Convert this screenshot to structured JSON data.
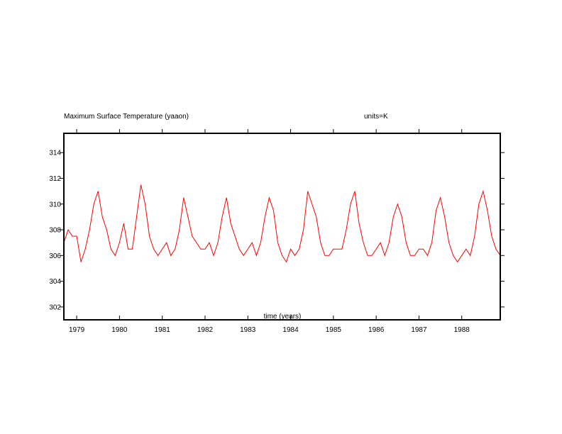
{
  "chart_data": {
    "type": "line",
    "title": "Maximum Surface Temperature (yaaon)",
    "units_label": "units=K",
    "xlabel": "time (years)",
    "ylabel": "",
    "xlim": [
      1978.7,
      1988.9
    ],
    "ylim": [
      301,
      315.5
    ],
    "x_ticks": [
      1979,
      1980,
      1981,
      1982,
      1983,
      1984,
      1985,
      1986,
      1987,
      1988
    ],
    "x_tick_labels": [
      "1979",
      "1980",
      "1981",
      "1982",
      "1983",
      "1984",
      "1985",
      "1986",
      "1987",
      "1988"
    ],
    "y_ticks": [
      302,
      304,
      306,
      308,
      310,
      312,
      314
    ],
    "y_tick_labels": [
      "302",
      "304",
      "306",
      "308",
      "310",
      "312",
      "314"
    ],
    "line_color": "#ff0000",
    "grid": false,
    "series": [
      {
        "x": [
          1978.7,
          1978.8,
          1978.9,
          1979.0,
          1979.1,
          1979.2,
          1979.3,
          1979.4,
          1979.5,
          1979.6,
          1979.7,
          1979.8,
          1979.9,
          1980.0,
          1980.1,
          1980.2,
          1980.3,
          1980.4,
          1980.5,
          1980.6,
          1980.7,
          1980.8,
          1980.9,
          1981.0,
          1981.1,
          1981.2,
          1981.3,
          1981.4,
          1981.5,
          1981.6,
          1981.7,
          1981.8,
          1981.9,
          1982.0,
          1982.1,
          1982.2,
          1982.3,
          1982.4,
          1982.5,
          1982.6,
          1982.7,
          1982.8,
          1982.9,
          1983.0,
          1983.1,
          1983.2,
          1983.3,
          1983.4,
          1983.5,
          1983.6,
          1983.7,
          1983.8,
          1983.9,
          1984.0,
          1984.1,
          1984.2,
          1984.3,
          1984.4,
          1984.5,
          1984.6,
          1984.7,
          1984.8,
          1984.9,
          1985.0,
          1985.1,
          1985.2,
          1985.3,
          1985.4,
          1985.5,
          1985.6,
          1985.7,
          1985.8,
          1985.9,
          1986.0,
          1986.1,
          1986.2,
          1986.3,
          1986.4,
          1986.5,
          1986.6,
          1986.7,
          1986.8,
          1986.9,
          1987.0,
          1987.1,
          1987.2,
          1987.3,
          1987.4,
          1987.5,
          1987.6,
          1987.7,
          1987.8,
          1987.9,
          1988.0,
          1988.1,
          1988.2,
          1988.3,
          1988.4,
          1988.5,
          1988.6,
          1988.7,
          1988.8,
          1988.9
        ],
        "y": [
          307.0,
          308.0,
          307.5,
          307.5,
          305.5,
          306.5,
          308.0,
          310.0,
          311.0,
          309.0,
          308.0,
          306.5,
          306.0,
          307.0,
          308.5,
          306.5,
          306.5,
          309.0,
          311.5,
          310.0,
          307.5,
          306.5,
          306.0,
          306.5,
          307.0,
          306.0,
          306.5,
          308.0,
          310.5,
          309.0,
          307.5,
          307.0,
          306.5,
          306.5,
          307.0,
          306.0,
          307.0,
          309.0,
          310.5,
          308.5,
          307.5,
          306.5,
          306.0,
          306.5,
          307.0,
          306.0,
          307.0,
          309.0,
          310.5,
          309.5,
          307.0,
          306.0,
          305.5,
          306.5,
          306.0,
          306.5,
          308.0,
          311.0,
          310.0,
          309.0,
          307.0,
          306.0,
          306.0,
          306.5,
          306.5,
          306.5,
          308.0,
          310.0,
          311.0,
          308.5,
          307.0,
          306.0,
          306.0,
          306.5,
          307.0,
          306.0,
          307.0,
          309.0,
          310.0,
          309.0,
          307.0,
          306.0,
          306.0,
          306.5,
          306.5,
          306.0,
          307.0,
          309.5,
          310.5,
          309.0,
          307.0,
          306.0,
          305.5,
          306.0,
          306.5,
          306.0,
          307.5,
          310.0,
          311.0,
          309.5,
          307.5,
          306.5,
          306.0
        ]
      }
    ]
  }
}
